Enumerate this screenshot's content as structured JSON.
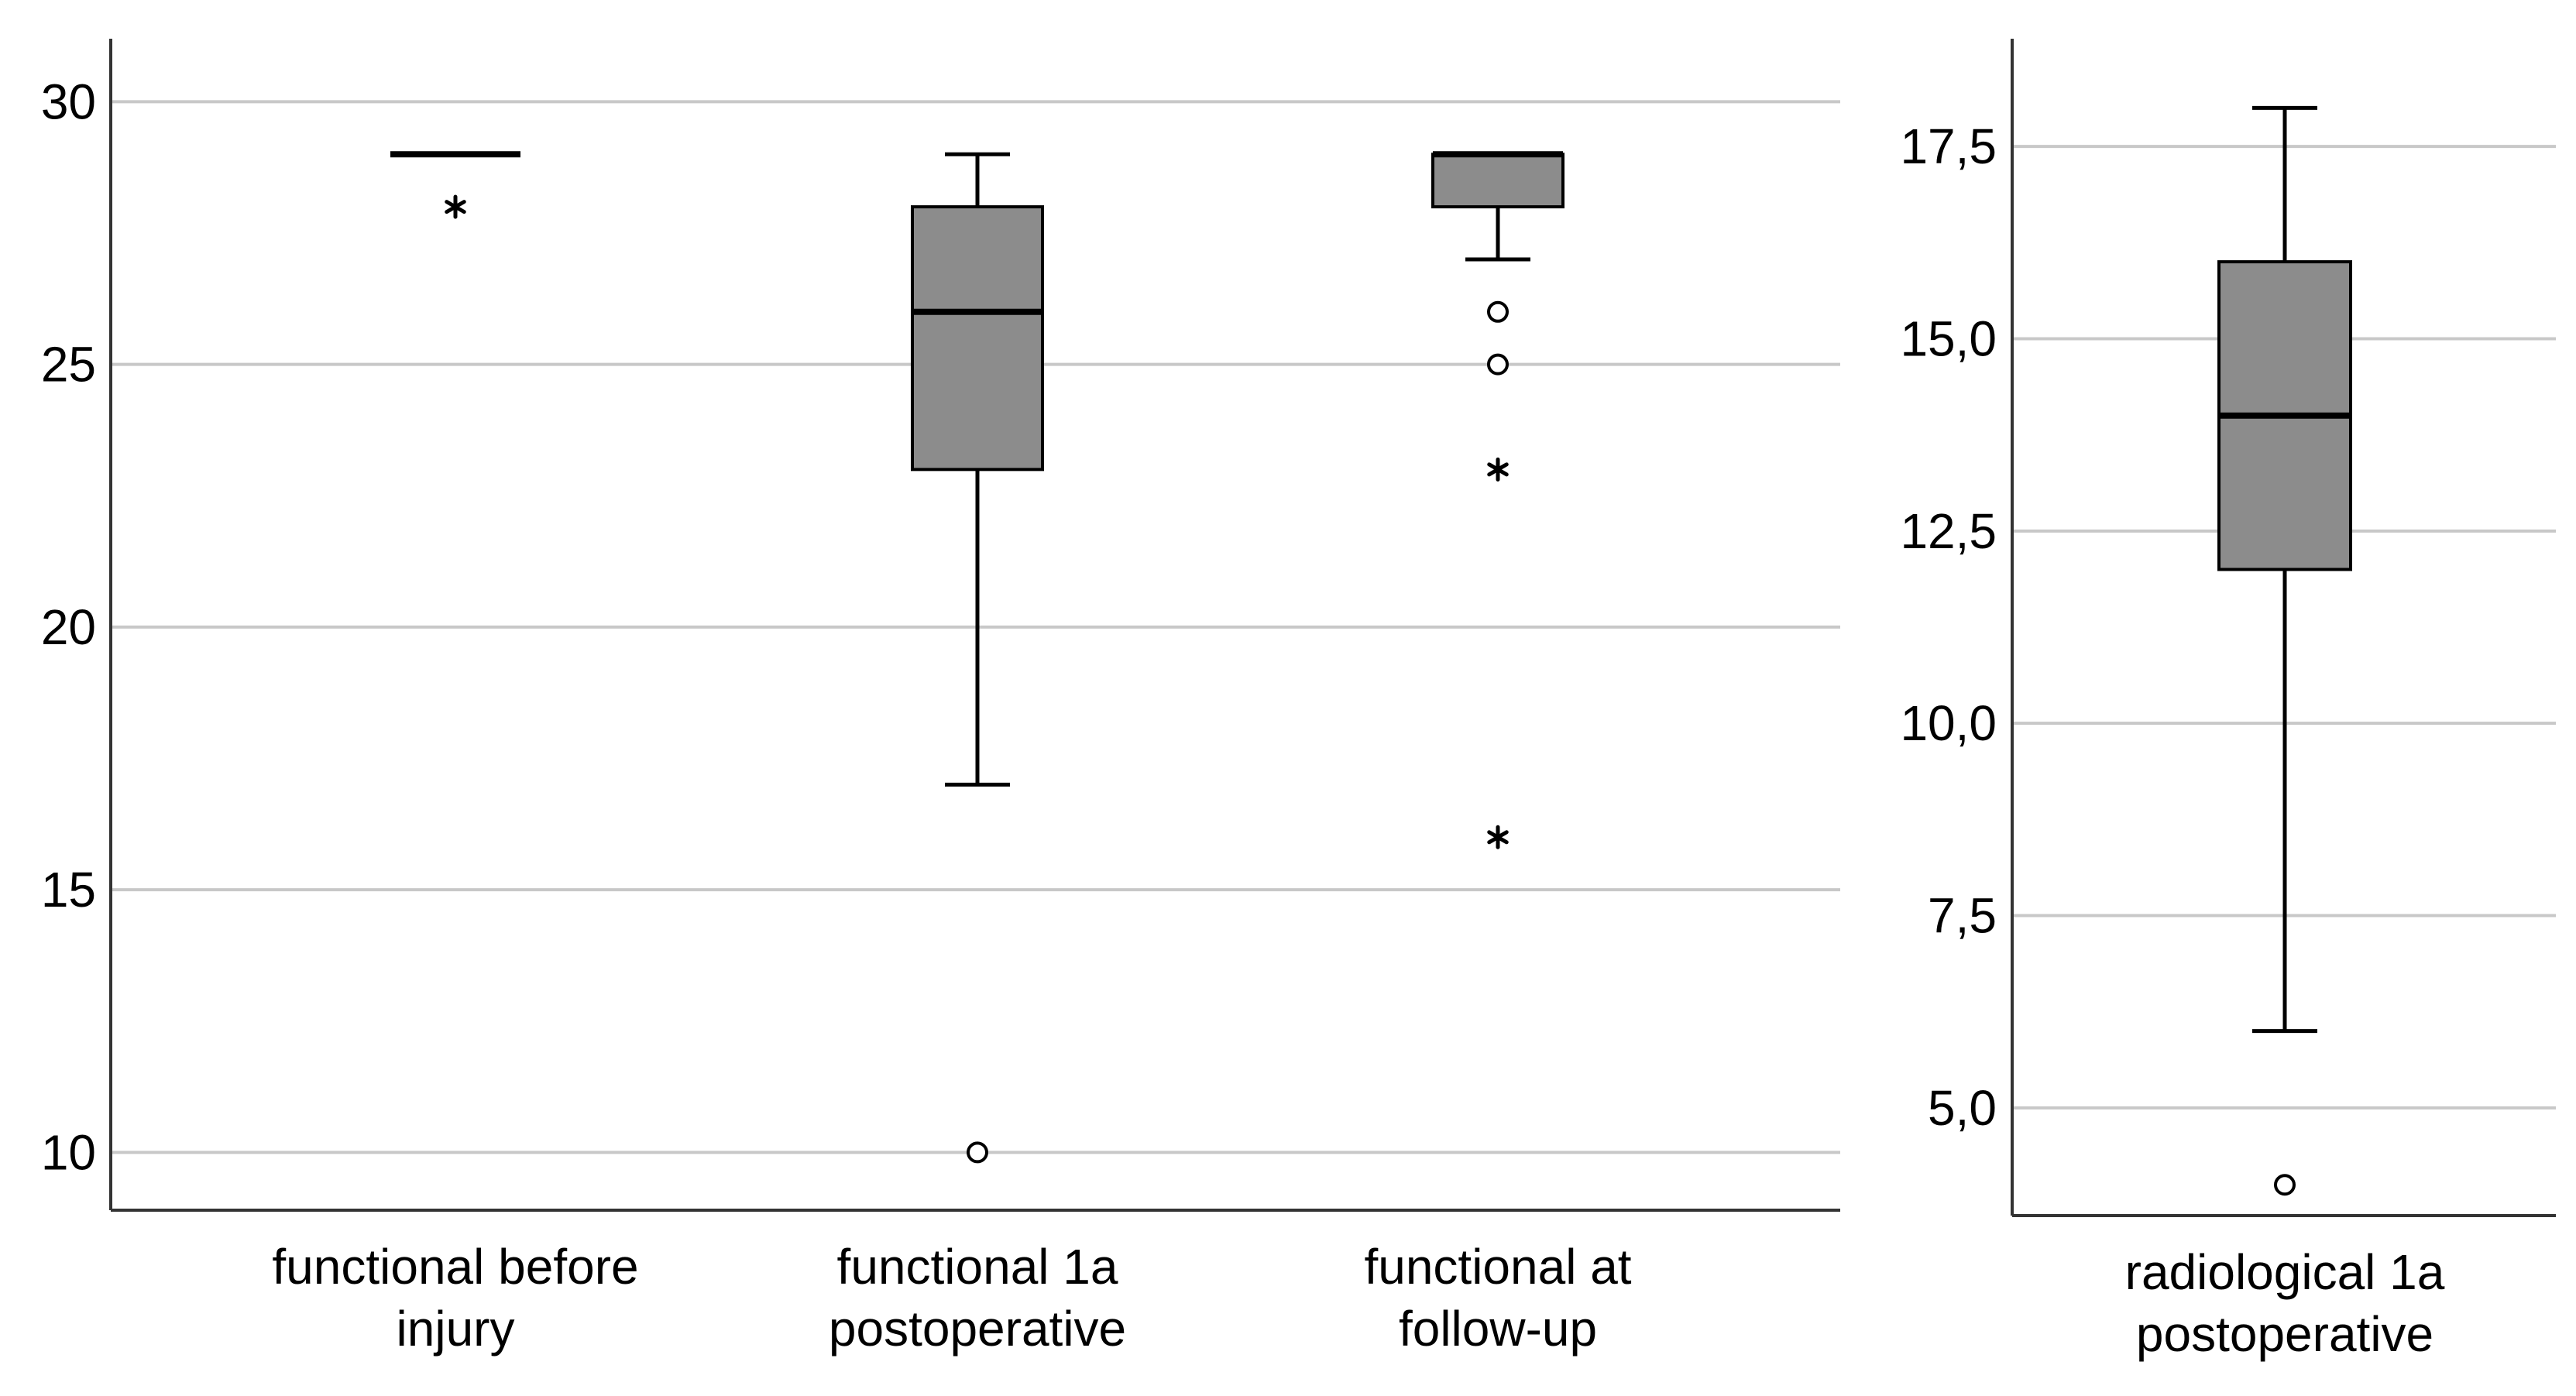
{
  "chart_data": [
    {
      "type": "box",
      "title": "",
      "xlabel": "",
      "ylabel": "",
      "ylim": [
        8.9,
        31.2
      ],
      "yticks": [
        10,
        15,
        20,
        25,
        30
      ],
      "ytick_labels": [
        "10",
        "15",
        "20",
        "25",
        "30"
      ],
      "grid": true,
      "categories": [
        [
          "functional before",
          "injury"
        ],
        [
          "functional 1a",
          "postoperative"
        ],
        [
          "functional at",
          "follow-up"
        ]
      ],
      "boxes": [
        {
          "whisker_low": 29,
          "q1": 29,
          "median": 29,
          "q3": 29,
          "whisker_high": 29,
          "outliers": [],
          "extremes": [
            28
          ]
        },
        {
          "whisker_low": 17,
          "q1": 23,
          "median": 26,
          "q3": 28,
          "whisker_high": 29,
          "outliers": [
            10
          ],
          "extremes": []
        },
        {
          "whisker_low": 27,
          "q1": 28,
          "median": 29,
          "q3": 29,
          "whisker_high": 29,
          "outliers": [
            26,
            25
          ],
          "extremes": [
            23,
            16
          ]
        }
      ]
    },
    {
      "type": "box",
      "title": "",
      "xlabel": "",
      "ylabel": "",
      "ylim": [
        3.6,
        18.9
      ],
      "yticks": [
        5.0,
        7.5,
        10.0,
        12.5,
        15.0,
        17.5
      ],
      "ytick_labels": [
        "5,0",
        "7,5",
        "10,0",
        "12,5",
        "15,0",
        "17,5"
      ],
      "grid": true,
      "categories": [
        [
          "radiological 1a",
          "postoperative"
        ]
      ],
      "boxes": [
        {
          "whisker_low": 6,
          "q1": 12,
          "median": 14,
          "q3": 16,
          "whisker_high": 18,
          "outliers": [
            4
          ],
          "extremes": []
        }
      ]
    }
  ],
  "style": {
    "box_fill": "#8c8c8c",
    "grid_color": "#c8c8c8",
    "axis_color": "#333333"
  }
}
